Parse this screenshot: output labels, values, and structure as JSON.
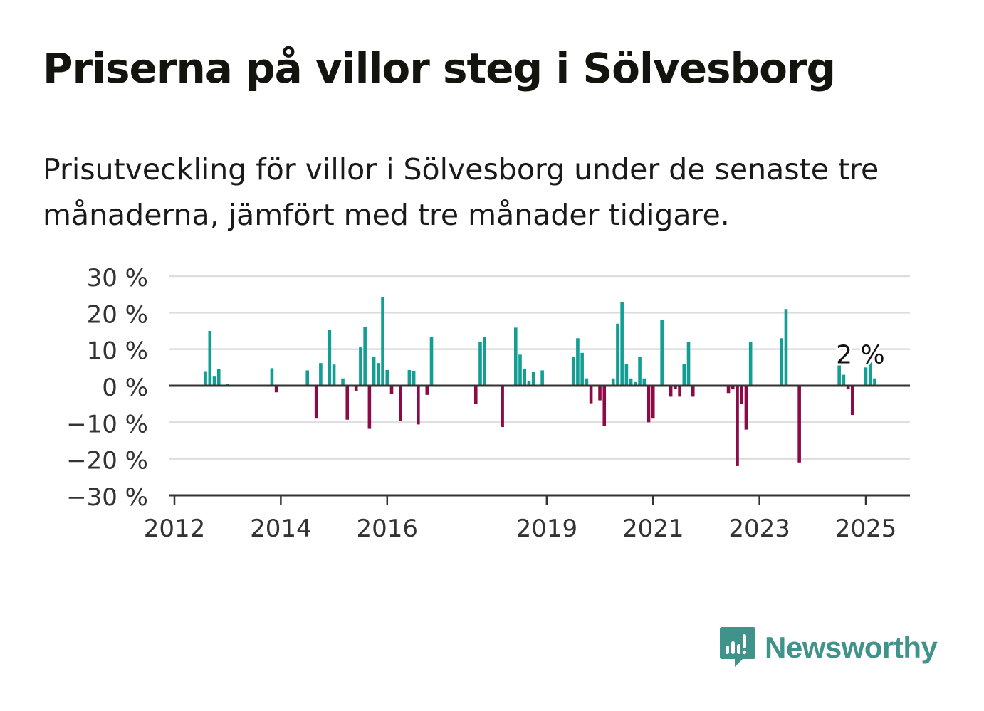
{
  "title": "Priserna på villor steg i Sölvesborg",
  "subtitle": "Prisutveckling för villor i Sölvesborg under de senaste tre månaderna, jämfört med tre månader tidigare.",
  "brand": {
    "name": "Newsworthy"
  },
  "colors": {
    "positive": "#139e93",
    "negative": "#8c0a45",
    "grid": "#dddddd",
    "axis": "#333333"
  },
  "chart_data": {
    "type": "bar",
    "title": "",
    "xlabel": "",
    "ylabel": "",
    "ylim": [
      -30,
      30
    ],
    "yticks": [
      30,
      20,
      10,
      0,
      -10,
      -20,
      -30
    ],
    "ytick_labels": [
      "30 %",
      "20 %",
      "10 %",
      "0 %",
      "−10 %",
      "−20 %",
      "−30 %"
    ],
    "x_tick_labels": [
      {
        "label": "2012",
        "date": "2012-01"
      },
      {
        "label": "2014",
        "date": "2014-01"
      },
      {
        "label": "2016",
        "date": "2016-01"
      },
      {
        "label": "2019",
        "date": "2019-01"
      },
      {
        "label": "2021",
        "date": "2021-01"
      },
      {
        "label": "2023",
        "date": "2023-01"
      },
      {
        "label": "2025",
        "date": "2025-01"
      }
    ],
    "xlim": [
      "2012-01",
      "2025-09"
    ],
    "grid": true,
    "annotation": {
      "text": "2 %",
      "date": "2025-03"
    },
    "series": [
      {
        "points": [
          {
            "date": "2012-08",
            "value": 4
          },
          {
            "date": "2012-09",
            "value": 15
          },
          {
            "date": "2012-10",
            "value": 2.5
          },
          {
            "date": "2012-11",
            "value": 4.5
          },
          {
            "date": "2013-01",
            "value": 0.5
          },
          {
            "date": "2013-11",
            "value": 4.8
          },
          {
            "date": "2013-12",
            "value": -1.8
          },
          {
            "date": "2014-07",
            "value": 4.2
          },
          {
            "date": "2014-09",
            "value": -9
          },
          {
            "date": "2014-10",
            "value": 6.2
          },
          {
            "date": "2014-12",
            "value": 15.2
          },
          {
            "date": "2015-01",
            "value": 5.8
          },
          {
            "date": "2015-03",
            "value": 2
          },
          {
            "date": "2015-04",
            "value": -9.3
          },
          {
            "date": "2015-06",
            "value": -1.5
          },
          {
            "date": "2015-07",
            "value": 10.5
          },
          {
            "date": "2015-08",
            "value": 16
          },
          {
            "date": "2015-09",
            "value": -11.8
          },
          {
            "date": "2015-10",
            "value": 8
          },
          {
            "date": "2015-11",
            "value": 6.2
          },
          {
            "date": "2015-12",
            "value": 24.2
          },
          {
            "date": "2016-01",
            "value": 4.3
          },
          {
            "date": "2016-02",
            "value": -2.3
          },
          {
            "date": "2016-04",
            "value": -9.7
          },
          {
            "date": "2016-05",
            "value": 0.3
          },
          {
            "date": "2016-06",
            "value": 4.3
          },
          {
            "date": "2016-07",
            "value": 4.1
          },
          {
            "date": "2016-08",
            "value": -10.6
          },
          {
            "date": "2016-10",
            "value": -2.5
          },
          {
            "date": "2016-11",
            "value": 13.3
          },
          {
            "date": "2017-09",
            "value": -5
          },
          {
            "date": "2017-10",
            "value": 12
          },
          {
            "date": "2017-11",
            "value": 13.4
          },
          {
            "date": "2017-12",
            "value": 0.3
          },
          {
            "date": "2018-03",
            "value": -11.3
          },
          {
            "date": "2018-06",
            "value": 15.9
          },
          {
            "date": "2018-07",
            "value": 8.5
          },
          {
            "date": "2018-08",
            "value": 4.7
          },
          {
            "date": "2018-09",
            "value": 1.3
          },
          {
            "date": "2018-10",
            "value": 3.8
          },
          {
            "date": "2018-12",
            "value": 4.2
          },
          {
            "date": "2019-07",
            "value": 8
          },
          {
            "date": "2019-08",
            "value": 13
          },
          {
            "date": "2019-09",
            "value": 9
          },
          {
            "date": "2019-10",
            "value": 2
          },
          {
            "date": "2019-11",
            "value": -4.8
          },
          {
            "date": "2020-01",
            "value": -4
          },
          {
            "date": "2020-02",
            "value": -11
          },
          {
            "date": "2020-04",
            "value": 2
          },
          {
            "date": "2020-05",
            "value": 17
          },
          {
            "date": "2020-06",
            "value": 23
          },
          {
            "date": "2020-07",
            "value": 6
          },
          {
            "date": "2020-08",
            "value": 2
          },
          {
            "date": "2020-09",
            "value": 1
          },
          {
            "date": "2020-10",
            "value": 8
          },
          {
            "date": "2020-11",
            "value": 2
          },
          {
            "date": "2020-12",
            "value": -10
          },
          {
            "date": "2021-01",
            "value": -9
          },
          {
            "date": "2021-03",
            "value": 18
          },
          {
            "date": "2021-05",
            "value": -3
          },
          {
            "date": "2021-06",
            "value": -1
          },
          {
            "date": "2021-07",
            "value": -3
          },
          {
            "date": "2021-08",
            "value": 6
          },
          {
            "date": "2021-09",
            "value": 12
          },
          {
            "date": "2021-10",
            "value": -3
          },
          {
            "date": "2022-06",
            "value": -2
          },
          {
            "date": "2022-07",
            "value": -1
          },
          {
            "date": "2022-08",
            "value": -22
          },
          {
            "date": "2022-09",
            "value": -5
          },
          {
            "date": "2022-10",
            "value": -12
          },
          {
            "date": "2022-11",
            "value": 12
          },
          {
            "date": "2023-06",
            "value": 13
          },
          {
            "date": "2023-07",
            "value": 21
          },
          {
            "date": "2023-10",
            "value": -21
          },
          {
            "date": "2024-07",
            "value": 7
          },
          {
            "date": "2024-08",
            "value": 3
          },
          {
            "date": "2024-09",
            "value": -1
          },
          {
            "date": "2024-10",
            "value": -8
          },
          {
            "date": "2025-01",
            "value": 5
          },
          {
            "date": "2025-02",
            "value": 9
          },
          {
            "date": "2025-03",
            "value": 2
          }
        ]
      }
    ]
  }
}
